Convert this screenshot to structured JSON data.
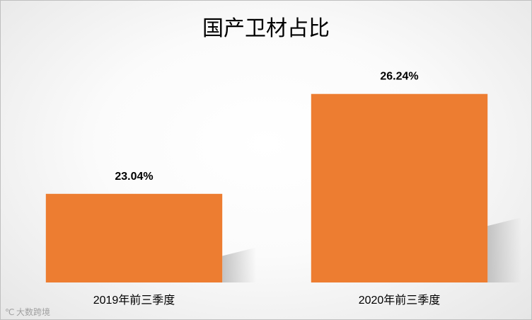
{
  "chart_data": {
    "type": "bar",
    "title": "国产卫材占比",
    "categories": [
      "2019年前三季度",
      "2020年前三季度"
    ],
    "values": [
      23.04,
      26.24
    ],
    "data_labels": [
      "23.04%",
      "26.24%"
    ],
    "ylim": [
      20.2,
      27.3
    ],
    "grid": false,
    "legend": "none",
    "bar_color": "#ED7D31",
    "shadow_color": "#c8c8c8"
  },
  "watermark": {
    "text": "大数跨境",
    "icon": "logo-mark-icon"
  }
}
